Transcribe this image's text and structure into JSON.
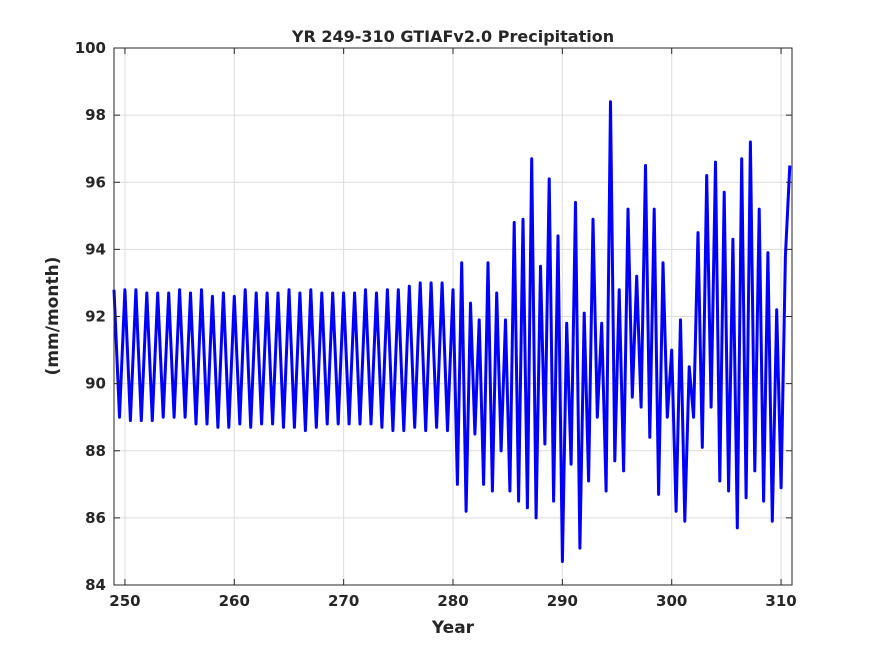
{
  "chart_data": {
    "type": "line",
    "title": "YR 249-310 GTIAFv2.0 Precipitation",
    "xlabel": "Year",
    "ylabel": "(mm/month)",
    "xlim": [
      249,
      311
    ],
    "ylim": [
      84,
      100
    ],
    "xticks": [
      250,
      260,
      270,
      280,
      290,
      300,
      310
    ],
    "yticks": [
      84,
      86,
      88,
      90,
      92,
      94,
      96,
      98,
      100
    ],
    "grid": true,
    "legend": null,
    "series": [
      {
        "color": "#0000ff",
        "x": [
          249.0,
          249.5,
          250.0,
          250.5,
          251.0,
          251.5,
          252.0,
          252.5,
          253.0,
          253.5,
          254.0,
          254.5,
          255.0,
          255.5,
          256.0,
          256.5,
          257.0,
          257.5,
          258.0,
          258.5,
          259.0,
          259.5,
          260.0,
          260.5,
          261.0,
          261.5,
          262.0,
          262.5,
          263.0,
          263.5,
          264.0,
          264.5,
          265.0,
          265.5,
          266.0,
          266.5,
          267.0,
          267.5,
          268.0,
          268.5,
          269.0,
          269.5,
          270.0,
          270.5,
          271.0,
          271.5,
          272.0,
          272.5,
          273.0,
          273.5,
          274.0,
          274.5,
          275.0,
          275.5,
          276.0,
          276.5,
          277.0,
          277.5,
          278.0,
          278.5,
          279.0,
          279.5,
          280.0,
          280.4,
          280.8,
          281.2,
          281.6,
          282.0,
          282.4,
          282.8,
          283.2,
          283.6,
          284.0,
          284.4,
          284.8,
          285.2,
          285.6,
          286.0,
          286.4,
          286.8,
          287.2,
          287.6,
          288.0,
          288.4,
          288.8,
          289.2,
          289.6,
          290.0,
          290.4,
          290.8,
          291.2,
          291.6,
          292.0,
          292.4,
          292.8,
          293.2,
          293.6,
          294.0,
          294.4,
          294.8,
          295.2,
          295.6,
          296.0,
          296.4,
          296.8,
          297.2,
          297.6,
          298.0,
          298.4,
          298.8,
          299.2,
          299.6,
          300.0,
          300.4,
          300.8,
          301.2,
          301.6,
          302.0,
          302.4,
          302.8,
          303.2,
          303.6,
          304.0,
          304.4,
          304.8,
          305.2,
          305.6,
          306.0,
          306.4,
          306.8,
          307.2,
          307.6,
          308.0,
          308.4,
          308.8,
          309.2,
          309.6,
          310.0,
          310.4,
          310.8
        ],
        "y": [
          92.8,
          89.0,
          92.8,
          88.9,
          92.8,
          88.9,
          92.7,
          88.9,
          92.7,
          89.0,
          92.7,
          89.0,
          92.8,
          89.0,
          92.7,
          88.8,
          92.8,
          88.8,
          92.6,
          88.7,
          92.7,
          88.7,
          92.6,
          88.8,
          92.8,
          88.7,
          92.7,
          88.8,
          92.7,
          88.8,
          92.7,
          88.7,
          92.8,
          88.7,
          92.7,
          88.6,
          92.8,
          88.7,
          92.7,
          88.8,
          92.7,
          88.8,
          92.7,
          88.8,
          92.7,
          88.8,
          92.8,
          88.8,
          92.7,
          88.7,
          92.8,
          88.6,
          92.8,
          88.6,
          92.9,
          88.7,
          93.0,
          88.6,
          93.0,
          88.7,
          93.0,
          88.6,
          92.8,
          87.0,
          93.6,
          86.2,
          92.4,
          88.5,
          91.9,
          87.0,
          93.6,
          86.8,
          92.7,
          88.0,
          91.9,
          86.8,
          94.8,
          86.5,
          94.9,
          86.3,
          96.7,
          86.0,
          93.5,
          88.2,
          96.1,
          86.5,
          94.4,
          84.7,
          91.8,
          87.6,
          95.4,
          85.1,
          92.1,
          87.1,
          94.9,
          89.0,
          91.8,
          86.8,
          98.4,
          87.7,
          92.8,
          87.4,
          95.2,
          89.6,
          93.2,
          89.3,
          96.5,
          88.4,
          95.2,
          86.7,
          93.6,
          89.0,
          91.0,
          86.2,
          91.9,
          85.9,
          90.5,
          89.0,
          94.5,
          88.1,
          96.2,
          89.3,
          96.6,
          87.1,
          95.7,
          86.8,
          94.3,
          85.7,
          96.7,
          86.6,
          97.2,
          87.4,
          95.2,
          86.5,
          93.9,
          85.9,
          92.2,
          86.9,
          93.8,
          96.5
        ]
      }
    ]
  }
}
